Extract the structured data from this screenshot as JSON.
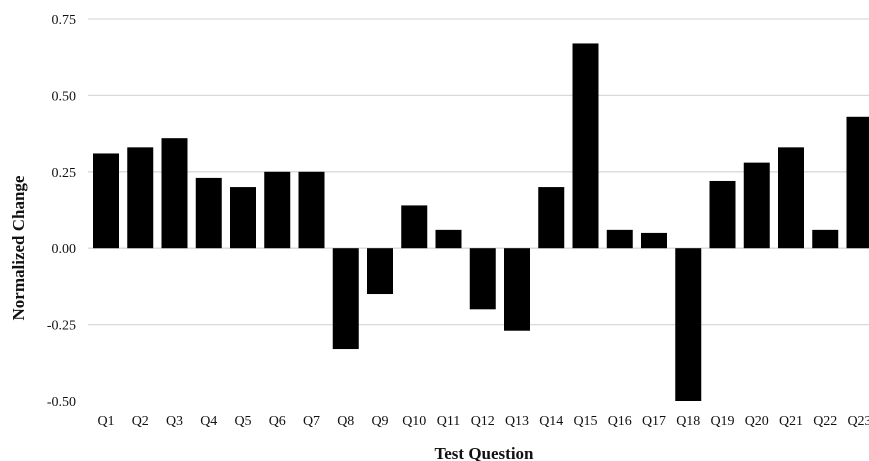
{
  "chart_data": {
    "type": "bar",
    "title": "",
    "xlabel": "Test Question",
    "ylabel": "Normalized Change",
    "ylim": [
      -0.5,
      0.75
    ],
    "yticks": [
      0.75,
      0.5,
      0.25,
      0.0,
      -0.25,
      -0.5
    ],
    "ytick_labels": [
      "0.75",
      "0.50",
      "0.25",
      "0.00",
      "-0.25",
      "-0.50"
    ],
    "grid": true,
    "legend": "none",
    "bar_color": "#000000",
    "categories": [
      "Q1",
      "Q2",
      "Q3",
      "Q4",
      "Q5",
      "Q6",
      "Q7",
      "Q8",
      "Q9",
      "Q10",
      "Q11",
      "Q12",
      "Q13",
      "Q14",
      "Q15",
      "Q16",
      "Q17",
      "Q18",
      "Q19",
      "Q20",
      "Q21",
      "Q22",
      "Q23"
    ],
    "values": [
      0.31,
      0.33,
      0.36,
      0.23,
      0.2,
      0.25,
      0.25,
      -0.33,
      -0.15,
      0.14,
      0.06,
      -0.2,
      -0.27,
      0.2,
      0.67,
      0.06,
      0.05,
      -0.5,
      0.22,
      0.28,
      0.33,
      0.06,
      0.43
    ]
  }
}
